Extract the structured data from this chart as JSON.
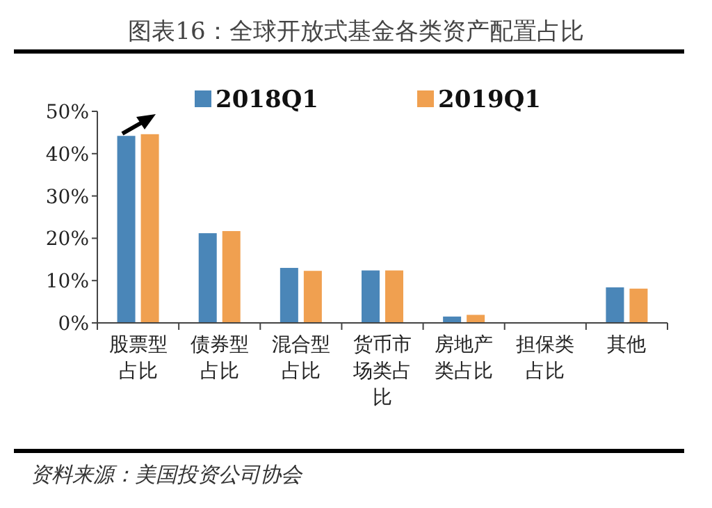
{
  "chart_data": {
    "type": "bar",
    "title": "图表16：全球开放式基金各类资产配置占比",
    "categories": [
      "股票型占比",
      "债券型占比",
      "混合型占比",
      "货币市场类占比",
      "房地产类占比",
      "担保类占比",
      "其他"
    ],
    "series": [
      {
        "name": "2018Q1",
        "color": "#4a86b8",
        "values": [
          44.2,
          21.2,
          13.0,
          12.4,
          1.5,
          0,
          8.4
        ]
      },
      {
        "name": "2019Q1",
        "color": "#f0a050",
        "values": [
          44.6,
          21.7,
          12.3,
          12.4,
          1.9,
          0,
          8.1
        ]
      }
    ],
    "ylim": [
      0,
      50
    ],
    "yticks": [
      {
        "value": 0,
        "label": "0%"
      },
      {
        "value": 10,
        "label": "10%"
      },
      {
        "value": 20,
        "label": "20%"
      },
      {
        "value": 30,
        "label": "30%"
      },
      {
        "value": 40,
        "label": "40%"
      },
      {
        "value": 50,
        "label": "50%"
      }
    ],
    "legend": "top",
    "grid": false,
    "annotations": [
      "资料来源：美国投资公司协会"
    ]
  }
}
